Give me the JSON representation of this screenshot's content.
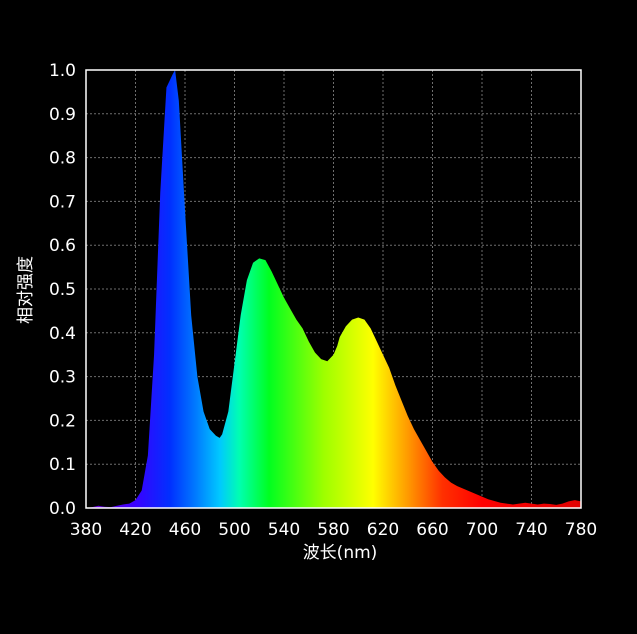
{
  "chart_data": {
    "type": "area",
    "xlabel": "波长(nm)",
    "ylabel": "相对强度",
    "xlim": [
      380,
      780
    ],
    "ylim": [
      0,
      1.0
    ],
    "x_ticks": [
      "380",
      "420",
      "460",
      "500",
      "540",
      "580",
      "620",
      "660",
      "700",
      "740",
      "780"
    ],
    "y_ticks": [
      "0.0",
      "0.1",
      "0.2",
      "0.3",
      "0.4",
      "0.5",
      "0.6",
      "0.7",
      "0.8",
      "0.9",
      "1.0"
    ],
    "grid": true,
    "fill": "visible-spectrum-gradient",
    "series": [
      {
        "x": [
          380,
          385,
          390,
          395,
          400,
          405,
          410,
          415,
          420,
          425,
          430,
          435,
          440,
          445,
          450,
          452,
          455,
          460,
          465,
          470,
          475,
          480,
          485,
          488,
          490,
          495,
          500,
          505,
          510,
          515,
          520,
          525,
          530,
          535,
          540,
          545,
          550,
          555,
          560,
          565,
          570,
          575,
          580,
          583,
          585,
          590,
          595,
          600,
          605,
          610,
          615,
          620,
          625,
          630,
          635,
          640,
          645,
          650,
          655,
          660,
          665,
          670,
          675,
          680,
          685,
          690,
          695,
          700,
          705,
          710,
          715,
          720,
          725,
          730,
          735,
          740,
          745,
          750,
          755,
          760,
          765,
          770,
          775,
          780
        ],
        "y": [
          0.0,
          0.002,
          0.005,
          0.003,
          0.002,
          0.005,
          0.008,
          0.01,
          0.018,
          0.04,
          0.12,
          0.35,
          0.72,
          0.96,
          0.99,
          1.0,
          0.93,
          0.68,
          0.44,
          0.3,
          0.22,
          0.18,
          0.165,
          0.16,
          0.168,
          0.22,
          0.33,
          0.44,
          0.52,
          0.56,
          0.57,
          0.566,
          0.54,
          0.51,
          0.48,
          0.455,
          0.43,
          0.41,
          0.38,
          0.355,
          0.34,
          0.335,
          0.35,
          0.37,
          0.39,
          0.415,
          0.43,
          0.435,
          0.43,
          0.41,
          0.38,
          0.35,
          0.32,
          0.28,
          0.245,
          0.21,
          0.18,
          0.155,
          0.13,
          0.105,
          0.085,
          0.07,
          0.058,
          0.05,
          0.044,
          0.038,
          0.032,
          0.026,
          0.02,
          0.016,
          0.012,
          0.01,
          0.008,
          0.01,
          0.012,
          0.01,
          0.008,
          0.01,
          0.009,
          0.007,
          0.01,
          0.015,
          0.018,
          0.015
        ]
      }
    ]
  }
}
